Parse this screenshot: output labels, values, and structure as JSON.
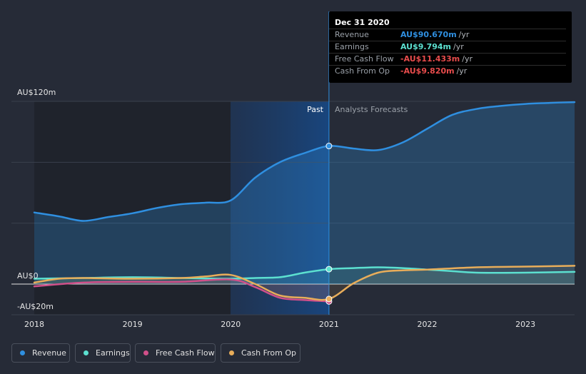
{
  "chart_data": {
    "type": "line",
    "x_ticks": [
      "2018",
      "2019",
      "2020",
      "2021",
      "2022",
      "2023"
    ],
    "y_labels": {
      "top": "AU$120m",
      "zero": "AU$0",
      "bottom": "-AU$20m"
    },
    "ylim": [
      -20,
      120
    ],
    "xlim": [
      2018.0,
      2023.5
    ],
    "divider_x": 2021.0,
    "past_label": "Past",
    "forecast_label": "Analysts Forecasts",
    "series": [
      {
        "name": "Revenue",
        "color": "#2f8fe0",
        "x": [
          2018.0,
          2018.25,
          2018.5,
          2018.75,
          2019.0,
          2019.25,
          2019.5,
          2019.75,
          2020.0,
          2020.25,
          2020.5,
          2020.75,
          2021.0,
          2021.25,
          2021.5,
          2021.75,
          2022.0,
          2022.25,
          2022.5,
          2022.75,
          2023.0,
          2023.25,
          2023.5
        ],
        "y": [
          47.0,
          44.5,
          41.5,
          44.0,
          46.5,
          50.0,
          52.5,
          53.5,
          55.0,
          70.0,
          80.0,
          86.0,
          90.7,
          89.0,
          88.0,
          93.0,
          102.0,
          111.0,
          115.0,
          117.0,
          118.3,
          119.0,
          119.5
        ]
      },
      {
        "name": "Earnings",
        "color": "#5ce0d0",
        "x": [
          2018.0,
          2018.5,
          2019.0,
          2019.5,
          2020.0,
          2020.25,
          2020.5,
          2020.75,
          2021.0,
          2021.25,
          2021.5,
          2021.75,
          2022.0,
          2022.25,
          2022.5,
          2023.0,
          2023.5
        ],
        "y": [
          3.5,
          4.0,
          4.5,
          4.0,
          3.5,
          4.0,
          4.5,
          7.5,
          9.8,
          10.5,
          11.0,
          10.5,
          9.5,
          8.5,
          7.5,
          7.5,
          8.0
        ]
      },
      {
        "name": "Free Cash Flow",
        "color": "#d0508a",
        "x": [
          2018.0,
          2018.5,
          2019.0,
          2019.5,
          2020.0,
          2020.25,
          2020.5,
          2020.75,
          2021.0
        ],
        "y": [
          -1.5,
          1.0,
          1.5,
          1.5,
          3.0,
          -2.0,
          -9.0,
          -10.5,
          -11.4
        ]
      },
      {
        "name": "Cash From Op",
        "color": "#e8ad5a",
        "x": [
          2018.0,
          2018.25,
          2018.5,
          2019.0,
          2019.5,
          2019.75,
          2020.0,
          2020.25,
          2020.5,
          2020.75,
          2021.0,
          2021.25,
          2021.5,
          2021.75,
          2022.0,
          2022.5,
          2023.0,
          2023.5
        ],
        "y": [
          1.0,
          3.5,
          4.0,
          3.5,
          4.0,
          5.0,
          6.0,
          0.0,
          -7.5,
          -9.0,
          -9.8,
          0.5,
          7.5,
          9.0,
          9.5,
          11.0,
          11.5,
          12.0
        ]
      }
    ]
  },
  "tooltip": {
    "date": "Dec 31 2020",
    "rows": [
      {
        "label": "Revenue",
        "value": "AU$90.670m",
        "unit": "/yr",
        "color": "#2f8fe0"
      },
      {
        "label": "Earnings",
        "value": "AU$9.794m",
        "unit": "/yr",
        "color": "#5ce0d0"
      },
      {
        "label": "Free Cash Flow",
        "value": "-AU$11.433m",
        "unit": "/yr",
        "color": "#e84c4c"
      },
      {
        "label": "Cash From Op",
        "value": "-AU$9.820m",
        "unit": "/yr",
        "color": "#e84c4c"
      }
    ]
  },
  "legend": [
    {
      "label": "Revenue",
      "color": "#2f8fe0"
    },
    {
      "label": "Earnings",
      "color": "#5ce0d0"
    },
    {
      "label": "Free Cash Flow",
      "color": "#d0508a"
    },
    {
      "label": "Cash From Op",
      "color": "#e8ad5a"
    }
  ]
}
